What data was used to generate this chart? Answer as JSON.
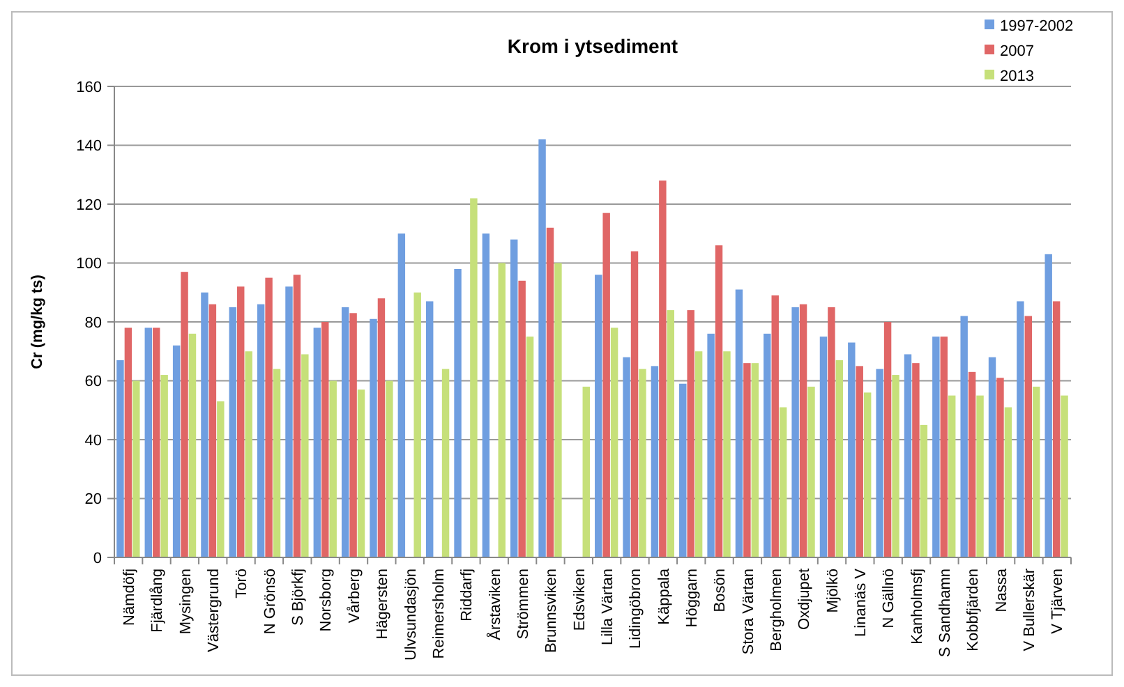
{
  "chart_data": {
    "type": "bar",
    "title": "Krom i ytsediment",
    "ylabel": "Cr (mg/kg ts)",
    "categories": [
      "Nämdöfj",
      "Fjärdlång",
      "Mysingen",
      "Västergrund",
      "Torö",
      "N Grönsö",
      "S Björkfj",
      "Norsborg",
      "Vårberg",
      "Hägersten",
      "Ulvsundasjön",
      "Reimersholm",
      "Riddarfj",
      "Årstaviken",
      "Strömmen",
      "Brunnsviken",
      "Edsviken",
      "Lilla Värtan",
      "Lidingöbron",
      "Käppala",
      "Höggarn",
      "Bosön",
      "Stora Värtan",
      "Bergholmen",
      "Oxdjupet",
      "Mjölkö",
      "Linanäs V",
      "N Gällnö",
      "Kanholmsfj",
      "S Sandhamn",
      "Kobbfjärden",
      "Nassa",
      "V Bullerskär",
      "V Tjärven"
    ],
    "series": [
      {
        "name": "1997-2002",
        "color": "#6f9ee0",
        "values": [
          67,
          78,
          72,
          90,
          85,
          86,
          92,
          78,
          85,
          81,
          110,
          87,
          98,
          110,
          108,
          142,
          null,
          96,
          68,
          65,
          59,
          76,
          91,
          76,
          85,
          75,
          73,
          64,
          69,
          75,
          82,
          68,
          87,
          103
        ]
      },
      {
        "name": "2007",
        "color": "#e06666",
        "values": [
          78,
          78,
          97,
          86,
          92,
          95,
          96,
          80,
          83,
          88,
          null,
          null,
          null,
          null,
          94,
          112,
          null,
          117,
          104,
          128,
          84,
          106,
          66,
          89,
          86,
          85,
          65,
          80,
          66,
          75,
          63,
          61,
          82,
          87
        ]
      },
      {
        "name": "2013",
        "color": "#c6e07a",
        "values": [
          60,
          62,
          76,
          53,
          70,
          64,
          69,
          60,
          57,
          60,
          90,
          64,
          122,
          100,
          75,
          100,
          58,
          78,
          64,
          84,
          70,
          70,
          66,
          51,
          58,
          67,
          56,
          62,
          45,
          55,
          55,
          51,
          58,
          55
        ]
      }
    ],
    "ylim": [
      0,
      160
    ],
    "yticks": [
      0,
      20,
      40,
      60,
      80,
      100,
      120,
      140,
      160
    ],
    "grid": "y",
    "legend": "top right"
  }
}
